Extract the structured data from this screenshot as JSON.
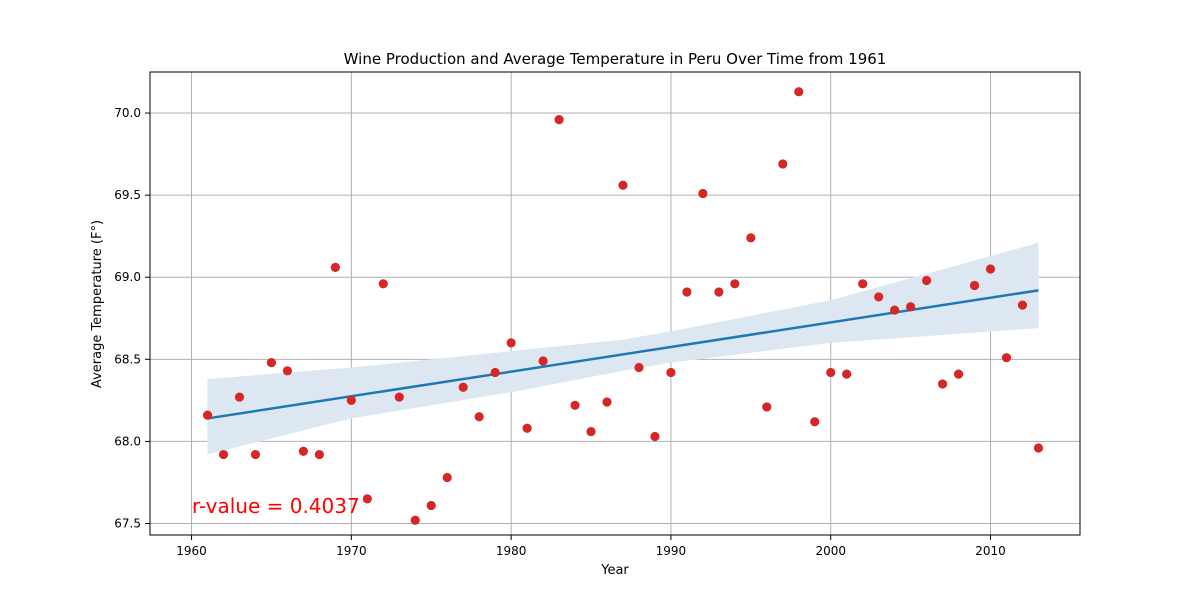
{
  "chart_data": {
    "type": "scatter",
    "title": "Wine Production and Average Temperature in Peru Over Time from 1961",
    "xlabel": "Year",
    "ylabel": "Average Temperature (F°)",
    "xlim": [
      1957.4,
      2015.6
    ],
    "ylim": [
      67.43,
      70.25
    ],
    "xticks": [
      1960,
      1970,
      1980,
      1990,
      2000,
      2010
    ],
    "yticks": [
      67.5,
      68.0,
      68.5,
      69.0,
      69.5,
      70.0
    ],
    "xtick_labels": [
      "1960",
      "1970",
      "1980",
      "1990",
      "2000",
      "2010"
    ],
    "ytick_labels": [
      "67.5",
      "68.0",
      "68.5",
      "69.0",
      "69.5",
      "70.0"
    ],
    "grid": true,
    "annotation": "r-value = 0.4037",
    "colors": {
      "points": "#d62728",
      "fit_line": "#1f77b4",
      "confidence_band": "#dce7f1",
      "annotation": "#ff0000",
      "grid": "#b0b0b0"
    },
    "points": {
      "x": [
        1961,
        1962,
        1963,
        1964,
        1965,
        1966,
        1967,
        1968,
        1969,
        1970,
        1971,
        1972,
        1973,
        1974,
        1975,
        1976,
        1977,
        1978,
        1979,
        1980,
        1981,
        1982,
        1983,
        1984,
        1985,
        1986,
        1987,
        1988,
        1989,
        1990,
        1991,
        1992,
        1993,
        1994,
        1995,
        1996,
        1997,
        1998,
        1999,
        2000,
        2001,
        2002,
        2003,
        2004,
        2005,
        2006,
        2007,
        2008,
        2009,
        2010,
        2011,
        2012,
        2013
      ],
      "y": [
        68.16,
        67.92,
        68.27,
        67.92,
        68.48,
        68.43,
        67.94,
        67.92,
        69.06,
        68.25,
        67.65,
        68.96,
        68.27,
        67.52,
        67.61,
        67.78,
        68.33,
        68.15,
        68.42,
        68.6,
        68.08,
        68.49,
        69.96,
        68.22,
        68.06,
        68.24,
        69.56,
        68.45,
        68.03,
        68.42,
        68.91,
        69.51,
        68.91,
        68.96,
        69.24,
        68.21,
        69.69,
        70.13,
        68.12,
        68.42,
        68.41,
        68.96,
        68.88,
        68.8,
        68.82,
        68.98,
        68.35,
        68.41,
        68.95,
        69.05,
        68.51,
        68.83,
        67.96
      ]
    },
    "fit": {
      "x": [
        1961,
        2013
      ],
      "y": [
        68.14,
        68.92
      ]
    },
    "confidence_band": {
      "x": [
        1961,
        1970,
        1980,
        1987,
        1990,
        2000,
        2013
      ],
      "upper": [
        68.38,
        68.45,
        68.55,
        68.62,
        68.67,
        68.86,
        69.21
      ],
      "lower": [
        67.92,
        68.14,
        68.3,
        68.43,
        68.48,
        68.6,
        68.69
      ]
    }
  }
}
